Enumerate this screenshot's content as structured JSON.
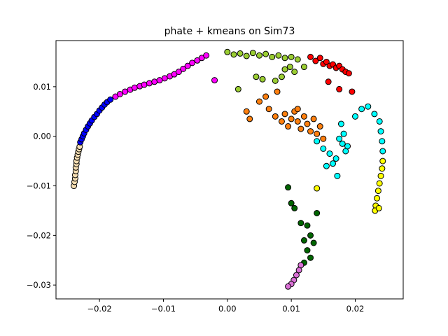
{
  "chart_data": {
    "type": "scatter",
    "title": "phate + kmeans on Sim73",
    "xlabel": "",
    "ylabel": "",
    "xlim": [
      -0.0268,
      0.0275
    ],
    "ylim": [
      -0.0328,
      0.0193
    ],
    "x_ticks": [
      -0.02,
      -0.01,
      0.0,
      0.01,
      0.02
    ],
    "x_tick_labels": [
      "−0.02",
      "−0.01",
      "0.00",
      "0.01",
      "0.02"
    ],
    "y_ticks": [
      -0.03,
      -0.02,
      -0.01,
      0.0,
      0.01
    ],
    "y_tick_labels": [
      "−0.03",
      "−0.02",
      "−0.01",
      "0.00",
      "0.01"
    ],
    "grid": false,
    "legend": "none",
    "marker_edge_color": "#000000",
    "series": [
      {
        "color": "#f5deb3",
        "points": [
          [
            -0.024,
            -0.01
          ],
          [
            -0.0239,
            -0.0092
          ],
          [
            -0.0238,
            -0.0085
          ],
          [
            -0.0238,
            -0.0078
          ],
          [
            -0.0237,
            -0.007
          ],
          [
            -0.0237,
            -0.0063
          ],
          [
            -0.0236,
            -0.0056
          ],
          [
            -0.0236,
            -0.005
          ],
          [
            -0.0235,
            -0.0043
          ],
          [
            -0.0234,
            -0.0037
          ],
          [
            -0.0233,
            -0.0031
          ],
          [
            -0.0232,
            -0.0026
          ],
          [
            -0.0231,
            -0.0021
          ]
        ]
      },
      {
        "color": "#0000ff",
        "points": [
          [
            -0.023,
            -0.0012
          ],
          [
            -0.0228,
            -0.0006
          ],
          [
            -0.0226,
            0.0
          ],
          [
            -0.0224,
            0.0006
          ],
          [
            -0.0221,
            0.0013
          ],
          [
            -0.0218,
            0.002
          ],
          [
            -0.0215,
            0.0026
          ],
          [
            -0.0212,
            0.0032
          ],
          [
            -0.0208,
            0.0039
          ],
          [
            -0.0204,
            0.0045
          ],
          [
            -0.02,
            0.0052
          ],
          [
            -0.0196,
            0.0058
          ],
          [
            -0.0192,
            0.0064
          ],
          [
            -0.0188,
            0.0069
          ],
          [
            -0.0183,
            0.0074
          ]
        ]
      },
      {
        "color": "#ff00ff",
        "points": [
          [
            -0.0175,
            0.008
          ],
          [
            -0.0168,
            0.0085
          ],
          [
            -0.016,
            0.009
          ],
          [
            -0.0152,
            0.0094
          ],
          [
            -0.0145,
            0.0098
          ],
          [
            -0.0137,
            0.0101
          ],
          [
            -0.013,
            0.0104
          ],
          [
            -0.0122,
            0.0107
          ],
          [
            -0.0114,
            0.011
          ],
          [
            -0.0106,
            0.0113
          ],
          [
            -0.0098,
            0.0117
          ],
          [
            -0.009,
            0.0121
          ],
          [
            -0.0083,
            0.0125
          ],
          [
            -0.0076,
            0.013
          ],
          [
            -0.0069,
            0.0136
          ],
          [
            -0.0062,
            0.0142
          ],
          [
            -0.0055,
            0.0148
          ],
          [
            -0.0047,
            0.0153
          ],
          [
            -0.004,
            0.0158
          ],
          [
            -0.0033,
            0.0163
          ],
          [
            -0.002,
            0.0113
          ]
        ]
      },
      {
        "color": "#9acd32",
        "points": [
          [
            0.0,
            0.017
          ],
          [
            0.001,
            0.0165
          ],
          [
            0.002,
            0.0167
          ],
          [
            0.003,
            0.0162
          ],
          [
            0.004,
            0.0168
          ],
          [
            0.005,
            0.0163
          ],
          [
            0.006,
            0.0166
          ],
          [
            0.007,
            0.016
          ],
          [
            0.008,
            0.0163
          ],
          [
            0.009,
            0.0158
          ],
          [
            0.01,
            0.016
          ],
          [
            0.011,
            0.0155
          ],
          [
            0.0098,
            0.014
          ],
          [
            0.0105,
            0.013
          ],
          [
            0.009,
            0.0135
          ],
          [
            0.0085,
            0.012
          ],
          [
            0.0075,
            0.0112
          ],
          [
            0.0055,
            0.0115
          ],
          [
            0.0045,
            0.012
          ],
          [
            0.0017,
            0.0095
          ],
          [
            0.012,
            0.014
          ]
        ]
      },
      {
        "color": "#ff0000",
        "points": [
          [
            0.013,
            0.016
          ],
          [
            0.0138,
            0.0152
          ],
          [
            0.0145,
            0.0158
          ],
          [
            0.015,
            0.0146
          ],
          [
            0.0155,
            0.015
          ],
          [
            0.016,
            0.0142
          ],
          [
            0.0165,
            0.0145
          ],
          [
            0.017,
            0.0138
          ],
          [
            0.0175,
            0.0142
          ],
          [
            0.018,
            0.0135
          ],
          [
            0.0185,
            0.013
          ],
          [
            0.019,
            0.0127
          ],
          [
            0.0158,
            0.011
          ],
          [
            0.0175,
            0.0095
          ],
          [
            0.0195,
            0.009
          ]
        ]
      },
      {
        "color": "#ff7f0e",
        "points": [
          [
            0.003,
            0.005
          ],
          [
            0.0035,
            0.0035
          ],
          [
            0.005,
            0.007
          ],
          [
            0.006,
            0.008
          ],
          [
            0.0065,
            0.0055
          ],
          [
            0.0075,
            0.004
          ],
          [
            0.0085,
            0.003
          ],
          [
            0.009,
            0.0045
          ],
          [
            0.0095,
            0.002
          ],
          [
            0.01,
            0.0035
          ],
          [
            0.0105,
            0.005
          ],
          [
            0.011,
            0.003
          ],
          [
            0.0115,
            0.0015
          ],
          [
            0.012,
            0.004
          ],
          [
            0.0125,
            0.0025
          ],
          [
            0.013,
            0.001
          ],
          [
            0.0135,
            0.0035
          ],
          [
            0.014,
            0.0005
          ],
          [
            0.0145,
            0.002
          ],
          [
            0.015,
            -0.0005
          ],
          [
            0.0078,
            0.009
          ],
          [
            0.011,
            0.0055
          ]
        ]
      },
      {
        "color": "#00ffff",
        "points": [
          [
            0.014,
            -0.001
          ],
          [
            0.015,
            -0.0025
          ],
          [
            0.016,
            -0.0035
          ],
          [
            0.017,
            -0.0045
          ],
          [
            0.018,
            -0.0015
          ],
          [
            0.0185,
            -0.003
          ],
          [
            0.0175,
            -0.0005
          ],
          [
            0.0165,
            -0.0055
          ],
          [
            0.0172,
            -0.008
          ],
          [
            0.0155,
            -0.006
          ],
          [
            0.0188,
            -0.002
          ],
          [
            0.0182,
            0.0005
          ],
          [
            0.02,
            0.004
          ],
          [
            0.021,
            0.0055
          ],
          [
            0.022,
            0.006
          ],
          [
            0.023,
            0.0045
          ],
          [
            0.0238,
            0.003
          ],
          [
            0.024,
            0.001
          ],
          [
            0.0242,
            -0.001
          ],
          [
            0.0243,
            -0.003
          ],
          [
            0.0178,
            0.0025
          ]
        ]
      },
      {
        "color": "#ffff00",
        "points": [
          [
            0.0243,
            -0.005
          ],
          [
            0.0242,
            -0.0065
          ],
          [
            0.024,
            -0.008
          ],
          [
            0.0238,
            -0.0095
          ],
          [
            0.0236,
            -0.011
          ],
          [
            0.0234,
            -0.0125
          ],
          [
            0.0232,
            -0.014
          ],
          [
            0.0231,
            -0.015
          ],
          [
            0.0237,
            -0.0145
          ],
          [
            0.014,
            -0.0105
          ]
        ]
      },
      {
        "color": "#006400",
        "points": [
          [
            0.0095,
            -0.0103
          ],
          [
            0.01,
            -0.0135
          ],
          [
            0.0105,
            -0.0145
          ],
          [
            0.014,
            -0.0155
          ],
          [
            0.0115,
            -0.0175
          ],
          [
            0.0125,
            -0.018
          ],
          [
            0.013,
            -0.02
          ],
          [
            0.012,
            -0.021
          ],
          [
            0.0135,
            -0.0215
          ],
          [
            0.0125,
            -0.023
          ],
          [
            0.013,
            -0.0245
          ],
          [
            0.012,
            -0.0255
          ]
        ]
      },
      {
        "color": "#da70d6",
        "points": [
          [
            0.0115,
            -0.026
          ],
          [
            0.0112,
            -0.027
          ],
          [
            0.0108,
            -0.028
          ],
          [
            0.0104,
            -0.029
          ],
          [
            0.01,
            -0.0298
          ],
          [
            0.0095,
            -0.0303
          ]
        ]
      }
    ]
  }
}
